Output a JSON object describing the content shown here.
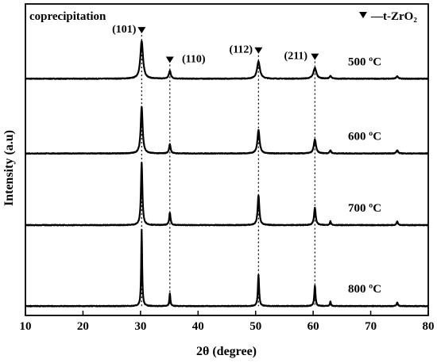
{
  "chart_data": {
    "type": "line",
    "annotation": "coprecipitation",
    "legend_label": "—t-ZrO₂",
    "legend_position": "top-right",
    "xlabel": "2θ (degree)",
    "ylabel": "Intensity (a.u)",
    "xlim": [
      10,
      80
    ],
    "x_ticks": [
      10,
      20,
      30,
      40,
      50,
      60,
      70,
      80
    ],
    "y_ticks_shown": false,
    "grid": false,
    "peak_labels": [
      {
        "hkl": "(101)",
        "two_theta": 30.2
      },
      {
        "hkl": "(110)",
        "two_theta": 35.1
      },
      {
        "hkl": "(112)",
        "two_theta": 50.5
      },
      {
        "hkl": "(211)",
        "two_theta": 60.3
      }
    ],
    "series": [
      {
        "name": "500 ºC",
        "baseline": 0.76,
        "peaks": [
          {
            "two_theta": 30.2,
            "height": 0.12,
            "width": 0.55
          },
          {
            "two_theta": 35.1,
            "height": 0.025,
            "width": 0.4
          },
          {
            "two_theta": 50.5,
            "height": 0.055,
            "width": 0.6
          },
          {
            "two_theta": 60.3,
            "height": 0.035,
            "width": 0.6
          },
          {
            "two_theta": 63.0,
            "height": 0.008,
            "width": 0.4
          },
          {
            "two_theta": 74.6,
            "height": 0.008,
            "width": 0.4
          }
        ]
      },
      {
        "name": "600 ºC",
        "baseline": 0.52,
        "peaks": [
          {
            "two_theta": 30.2,
            "height": 0.15,
            "width": 0.4
          },
          {
            "two_theta": 35.1,
            "height": 0.03,
            "width": 0.32
          },
          {
            "two_theta": 50.5,
            "height": 0.075,
            "width": 0.45
          },
          {
            "two_theta": 60.3,
            "height": 0.045,
            "width": 0.45
          },
          {
            "two_theta": 63.0,
            "height": 0.01,
            "width": 0.3
          },
          {
            "two_theta": 74.6,
            "height": 0.01,
            "width": 0.35
          }
        ]
      },
      {
        "name": "700 ºC",
        "baseline": 0.29,
        "peaks": [
          {
            "two_theta": 30.2,
            "height": 0.2,
            "width": 0.3
          },
          {
            "two_theta": 35.1,
            "height": 0.04,
            "width": 0.28
          },
          {
            "two_theta": 50.5,
            "height": 0.095,
            "width": 0.35
          },
          {
            "two_theta": 60.3,
            "height": 0.055,
            "width": 0.35
          },
          {
            "two_theta": 63.0,
            "height": 0.012,
            "width": 0.25
          },
          {
            "two_theta": 74.6,
            "height": 0.012,
            "width": 0.3
          }
        ]
      },
      {
        "name": "800 ºC",
        "baseline": 0.03,
        "peaks": [
          {
            "two_theta": 30.2,
            "height": 0.245,
            "width": 0.2
          },
          {
            "two_theta": 35.1,
            "height": 0.04,
            "width": 0.22
          },
          {
            "two_theta": 50.5,
            "height": 0.1,
            "width": 0.25
          },
          {
            "two_theta": 60.3,
            "height": 0.065,
            "width": 0.25
          },
          {
            "two_theta": 63.0,
            "height": 0.015,
            "width": 0.2
          },
          {
            "two_theta": 74.6,
            "height": 0.012,
            "width": 0.25
          }
        ]
      }
    ]
  }
}
